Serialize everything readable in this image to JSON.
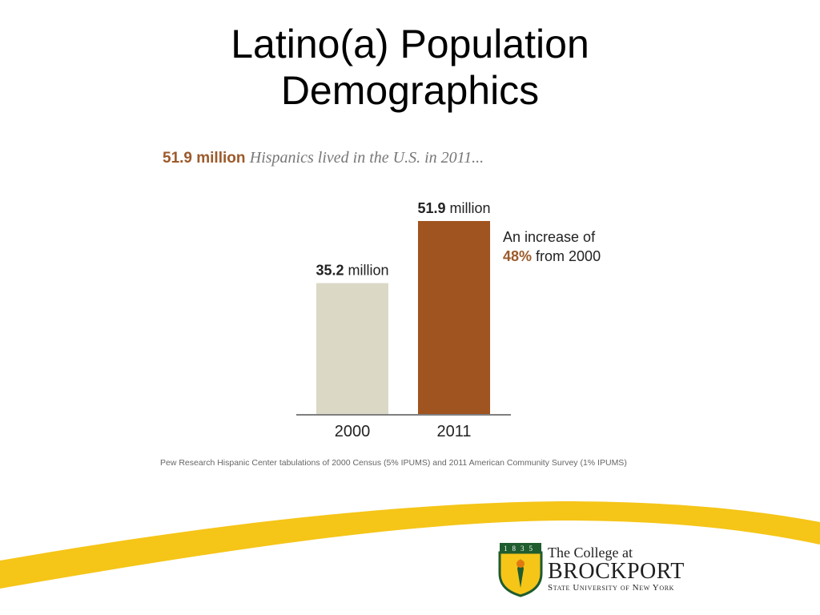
{
  "slide": {
    "title_line1": "Latino(a) Population",
    "title_line2": "Demographics"
  },
  "headline": {
    "number": "51.9 million",
    "text": "Hispanics lived in the U.S. in 2011..."
  },
  "source": "Pew Research Hispanic Center tabulations of 2000 Census (5% IPUMS) and 2011 American Community Survey (1% IPUMS)",
  "logo": {
    "line1": "The College at",
    "line2": "BROCKPORT",
    "line3": "State University of New York",
    "year_digits": "1835"
  },
  "colors": {
    "bar_2000": "#dbd8c6",
    "bar_2011": "#a0541f",
    "accent": "#9c5a2a",
    "swoosh": "#f5c518",
    "shield_green": "#1f5c2e"
  },
  "chart_data": {
    "type": "bar",
    "categories": [
      "2000",
      "2011"
    ],
    "values": [
      35.2,
      51.9
    ],
    "value_labels": [
      {
        "bold": "35.2",
        "unit": " million"
      },
      {
        "bold": "51.9",
        "unit": " million"
      }
    ],
    "annotation": {
      "line1": "An increase of",
      "pct": "48%",
      "line2_rest": " from 2000"
    },
    "ylim": [
      0,
      51.9
    ],
    "grid": false
  }
}
